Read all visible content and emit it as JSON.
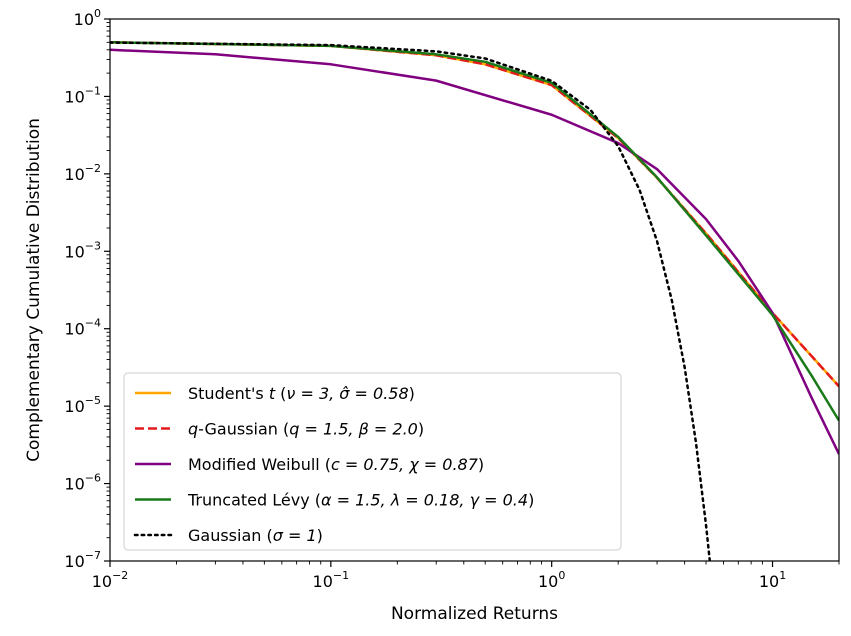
{
  "chart_data": {
    "type": "line",
    "xlabel": "Normalized Returns",
    "ylabel": "Complementary Cumulative Distribution",
    "xscale": "log",
    "yscale": "log",
    "xlim": [
      0.01,
      20
    ],
    "ylim": [
      1e-07,
      1
    ],
    "x_ticks": [
      {
        "value": 0.01,
        "base": "10",
        "exp": "−2"
      },
      {
        "value": 0.1,
        "base": "10",
        "exp": "−1"
      },
      {
        "value": 1,
        "base": "10",
        "exp": "0"
      },
      {
        "value": 10,
        "base": "10",
        "exp": "1"
      }
    ],
    "y_ticks": [
      {
        "value": 1,
        "base": "10",
        "exp": "0"
      },
      {
        "value": 0.1,
        "base": "10",
        "exp": "−1"
      },
      {
        "value": 0.01,
        "base": "10",
        "exp": "−2"
      },
      {
        "value": 0.001,
        "base": "10",
        "exp": "−3"
      },
      {
        "value": 0.0001,
        "base": "10",
        "exp": "−4"
      },
      {
        "value": 1e-05,
        "base": "10",
        "exp": "−5"
      },
      {
        "value": 1e-06,
        "base": "10",
        "exp": "−6"
      },
      {
        "value": 1e-07,
        "base": "10",
        "exp": "−7"
      }
    ],
    "legend_position": "lower-left",
    "grid": false,
    "series": [
      {
        "name": "Student's t (ν = 3, σ̂ = 0.58)",
        "color": "#ffa500",
        "dash": "solid",
        "x": [
          0.01,
          0.1,
          0.3,
          0.5,
          1,
          2,
          3,
          5,
          10,
          20
        ],
        "y": [
          0.5,
          0.45,
          0.34,
          0.26,
          0.14,
          0.029,
          0.0089,
          0.0017,
          0.00016,
          1.8e-05
        ]
      },
      {
        "name": "q-Gaussian (q = 1.5, β = 2.0)",
        "color": "#e41a1c",
        "dash": "dashed",
        "x": [
          0.01,
          0.1,
          0.3,
          0.5,
          1,
          2,
          3,
          5,
          10,
          20
        ],
        "y": [
          0.5,
          0.45,
          0.34,
          0.26,
          0.14,
          0.029,
          0.0089,
          0.0017,
          0.00016,
          1.8e-05
        ]
      },
      {
        "name": "Modified Weibull (c = 0.75, χ = 0.87)",
        "color": "#800080",
        "dash": "solid",
        "x": [
          0.01,
          0.03,
          0.1,
          0.3,
          1,
          2,
          3,
          5,
          7,
          10,
          15,
          20
        ],
        "y": [
          0.4,
          0.35,
          0.26,
          0.16,
          0.058,
          0.025,
          0.0115,
          0.0026,
          0.00075,
          0.00016,
          1.3e-05,
          2.4e-06
        ]
      },
      {
        "name": "Truncated Lévy (α = 1.5, λ = 0.18, γ = 0.4)",
        "color": "#1a7a1a",
        "dash": "solid",
        "x": [
          0.01,
          0.1,
          0.3,
          0.5,
          1,
          2,
          3,
          5,
          10,
          15,
          20
        ],
        "y": [
          0.5,
          0.45,
          0.35,
          0.28,
          0.15,
          0.03,
          0.009,
          0.0016,
          0.00015,
          2.5e-05,
          6.5e-06
        ]
      },
      {
        "name": "Gaussian (σ = 1)",
        "color": "#000000",
        "dash": "dotted",
        "x": [
          0.01,
          0.1,
          0.3,
          0.5,
          1,
          1.5,
          2,
          2.5,
          3,
          3.5,
          4,
          4.5,
          5,
          5.2
        ],
        "y": [
          0.496,
          0.46,
          0.382,
          0.309,
          0.159,
          0.0668,
          0.0228,
          0.0062,
          0.00135,
          0.000233,
          3.17e-05,
          3.4e-06,
          2.9e-07,
          1e-07
        ]
      }
    ],
    "legend": [
      {
        "pre": "Student's ",
        "var": "t",
        "post": " (",
        "params": "ν = 3, σ̂ = 0.58",
        "end": ")"
      },
      {
        "pre": "",
        "var": "q",
        "post": "-Gaussian (",
        "params": "q = 1.5, β = 2.0",
        "end": ")"
      },
      {
        "pre": "Modified Weibull (",
        "var": "",
        "post": "",
        "params": "c = 0.75, χ = 0.87",
        "end": ")"
      },
      {
        "pre": "Truncated Lévy (",
        "var": "",
        "post": "",
        "params": "α = 1.5, λ = 0.18, γ = 0.4",
        "end": ")"
      },
      {
        "pre": "Gaussian (",
        "var": "",
        "post": "",
        "params": "σ = 1",
        "end": ")"
      }
    ]
  }
}
